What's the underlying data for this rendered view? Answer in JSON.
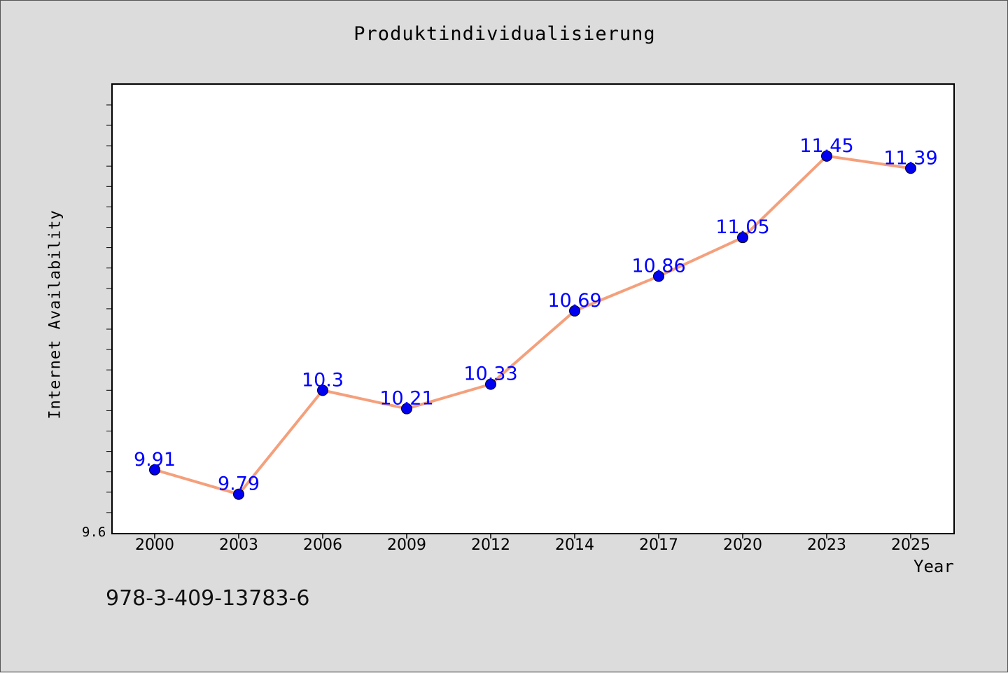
{
  "chart_data": {
    "type": "line",
    "title": "Produktindividualisierung",
    "xlabel": "Year",
    "ylabel": "Internet Availability",
    "x": [
      "2000",
      "2003",
      "2006",
      "2009",
      "2012",
      "2014",
      "2017",
      "2020",
      "2023",
      "2025"
    ],
    "series": [
      {
        "values": [
          9.91,
          9.79,
          10.3,
          10.21,
          10.33,
          10.69,
          10.86,
          11.05,
          11.45,
          11.39
        ],
        "line_color": "#f4a07c",
        "marker_color": "#0000ee"
      }
    ],
    "data_labels": [
      "9.91",
      "9.79",
      "10.3",
      "10.21",
      "10.33",
      "10.69",
      "10.86",
      "11.05",
      "11.45",
      "11.39"
    ],
    "ylim": [
      9.6,
      11.8
    ],
    "ytick_labels": [
      "9.6"
    ],
    "grid": false
  },
  "annotations": {
    "isbn": "978-3-409-13783-6"
  }
}
